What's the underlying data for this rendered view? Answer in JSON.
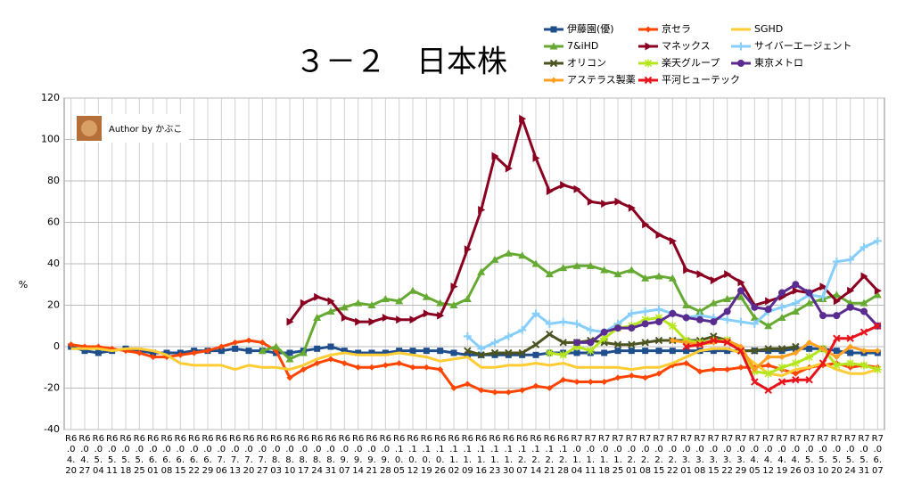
{
  "chart_data": {
    "type": "line",
    "title": "３－２　日本株",
    "y_label": "%",
    "watermark": "Author by かぶこ",
    "categories": [
      "R6.04.20",
      "R6.04.27",
      "R6.05.04",
      "R6.05.11",
      "R6.05.18",
      "R6.05.25",
      "R6.06.01",
      "R6.06.08",
      "R6.06.15",
      "R6.06.22",
      "R6.06.29",
      "R6.07.06",
      "R6.07.13",
      "R6.07.20",
      "R6.07.27",
      "R6.08.03",
      "R6.08.10",
      "R6.08.17",
      "R6.08.24",
      "R6.08.31",
      "R6.09.07",
      "R6.09.14",
      "R6.09.21",
      "R6.09.28",
      "R6.10.05",
      "R6.10.12",
      "R6.10.19",
      "R6.10.26",
      "R6.11.02",
      "R6.11.09",
      "R6.11.16",
      "R6.11.23",
      "R6.11.30",
      "R6.12.07",
      "R6.12.14",
      "R6.12.21",
      "R6.12.28",
      "R7.01.04",
      "R7.01.11",
      "R7.01.18",
      "R7.01.25",
      "R7.02.01",
      "R7.02.08",
      "R7.02.15",
      "R7.02.22",
      "R7.03.01",
      "R7.03.08",
      "R7.03.15",
      "R7.03.22",
      "R7.03.29",
      "R7.04.05",
      "R7.04.12",
      "R7.04.19",
      "R7.04.26",
      "R7.05.03",
      "R7.05.10",
      "R7.05.20",
      "R7.05.24",
      "R7.05.31",
      "R7.06.07"
    ],
    "ylim": [
      -40,
      120
    ],
    "yticks": [
      -40,
      -20,
      0,
      20,
      40,
      60,
      80,
      100,
      120
    ],
    "grid": true,
    "series": [
      {
        "name": "伊藤園(優)",
        "color": "#1f4e8c",
        "marker": "square",
        "values": [
          0,
          -2,
          -3,
          -2,
          -1,
          -2,
          -3,
          -3,
          -3,
          -2,
          -2,
          -2,
          -1,
          -2,
          -2,
          -3,
          -3,
          -2,
          -1,
          0,
          -2,
          -3,
          -3,
          -3,
          -2,
          -2,
          -2,
          -2,
          -3,
          -4,
          -4,
          -4,
          -4,
          -4,
          -4,
          -3,
          -3,
          -3,
          -3,
          -3,
          -2,
          -2,
          -2,
          -2,
          -2,
          -2,
          -2,
          -2,
          -2,
          -2,
          -2,
          -2,
          -2,
          -1,
          -1,
          -1,
          -2,
          -3,
          -3,
          -3
        ]
      },
      {
        "name": "京セラ",
        "color": "#ff4500",
        "marker": "diamond",
        "values": [
          1,
          0,
          0,
          -1,
          -2,
          -3,
          -5,
          -5,
          -4,
          -3,
          -2,
          0,
          2,
          3,
          2,
          -2,
          -15,
          -11,
          -8,
          -6,
          -8,
          -10,
          -10,
          -9,
          -8,
          -10,
          -10,
          -11,
          -20,
          -18,
          -21,
          -22,
          -22,
          -21,
          -19,
          -20,
          -16,
          -17,
          -17,
          -17,
          -15,
          -14,
          -15,
          -13,
          -9,
          -8,
          -12,
          -11,
          -11,
          -10,
          -10,
          -9,
          -11,
          -13,
          -10,
          -9,
          -8,
          -10,
          -9,
          -10
        ]
      },
      {
        "name": "SGHD",
        "color": "#ffcc33",
        "marker": "none",
        "values": [
          -1,
          -1,
          -1,
          -2,
          -1,
          -1,
          -2,
          -4,
          -8,
          -9,
          -9,
          -9,
          -11,
          -9,
          -10,
          -10,
          -11,
          -9,
          -6,
          -4,
          -3,
          -4,
          -4,
          -4,
          -3,
          -4,
          -5,
          -7,
          -6,
          -5,
          -10,
          -10,
          -9,
          -9,
          -8,
          -9,
          -8,
          -10,
          -10,
          -10,
          -10,
          -11,
          -10,
          -10,
          -8,
          -5,
          -2,
          -1,
          -1,
          -3,
          -8,
          -13,
          -14,
          -11,
          -10,
          -8,
          -11,
          -13,
          -13,
          -11
        ]
      },
      {
        "name": "7&iHD",
        "color": "#66aa33",
        "marker": "triangle",
        "values": [
          null,
          null,
          null,
          null,
          null,
          null,
          null,
          null,
          null,
          null,
          null,
          null,
          null,
          null,
          -2,
          0,
          -6,
          -3,
          14,
          17,
          19,
          21,
          20,
          23,
          22,
          27,
          24,
          21,
          20,
          23,
          36,
          42,
          45,
          44,
          40,
          35,
          38,
          39,
          39,
          37,
          35,
          37,
          33,
          34,
          33,
          20,
          17,
          21,
          23,
          24,
          14,
          10,
          14,
          17,
          21,
          23,
          25,
          21,
          21,
          25
        ]
      },
      {
        "name": "マネックス",
        "color": "#8b0020",
        "marker": "triangle-right",
        "values": [
          null,
          null,
          null,
          null,
          null,
          null,
          null,
          null,
          null,
          null,
          null,
          null,
          null,
          null,
          null,
          null,
          12,
          21,
          24,
          22,
          14,
          12,
          12,
          14,
          13,
          13,
          16,
          15,
          29,
          47,
          66,
          92,
          86,
          110,
          91,
          75,
          78,
          76,
          70,
          69,
          70,
          67,
          59,
          54,
          51,
          37,
          35,
          32,
          35,
          31,
          20,
          22,
          24,
          27,
          26,
          29,
          22,
          27,
          34,
          27
        ]
      },
      {
        "name": "サイバーエージェント",
        "color": "#87cefa",
        "marker": "plus",
        "values": [
          null,
          null,
          null,
          null,
          null,
          null,
          null,
          null,
          null,
          null,
          null,
          null,
          null,
          null,
          null,
          null,
          null,
          null,
          null,
          null,
          null,
          null,
          null,
          null,
          null,
          null,
          null,
          null,
          null,
          5,
          -1,
          2,
          5,
          8,
          16,
          11,
          12,
          11,
          8,
          7,
          11,
          16,
          17,
          18,
          16,
          14,
          15,
          14,
          13,
          12,
          11,
          17,
          19,
          21,
          25,
          24,
          41,
          42,
          48,
          51
        ]
      },
      {
        "name": "オリコン",
        "color": "#4b5320",
        "marker": "x",
        "values": [
          null,
          null,
          null,
          null,
          null,
          null,
          null,
          null,
          null,
          null,
          null,
          null,
          null,
          null,
          null,
          null,
          null,
          null,
          null,
          null,
          null,
          null,
          null,
          null,
          null,
          null,
          null,
          null,
          null,
          -2,
          -4,
          -3,
          -3,
          -3,
          1,
          6,
          2,
          2,
          3,
          2,
          1,
          1,
          2,
          3,
          3,
          3,
          3,
          5,
          3,
          -2,
          -2,
          -1,
          -1,
          0,
          null,
          null,
          null,
          null,
          null,
          null
        ]
      },
      {
        "name": "楽天グループ",
        "color": "#b5e61d",
        "marker": "star",
        "values": [
          null,
          null,
          null,
          null,
          null,
          null,
          null,
          null,
          null,
          null,
          null,
          null,
          null,
          null,
          null,
          null,
          null,
          null,
          null,
          null,
          null,
          null,
          null,
          null,
          null,
          null,
          null,
          null,
          null,
          null,
          null,
          null,
          null,
          null,
          null,
          -3,
          -4,
          0,
          -2,
          4,
          9,
          10,
          13,
          14,
          10,
          3,
          2,
          3,
          3,
          -2,
          -12,
          -13,
          -10,
          -8,
          -5,
          -1,
          -9,
          -8,
          -9,
          -11
        ]
      },
      {
        "name": "東京メトロ",
        "color": "#5b2c8f",
        "marker": "circle",
        "values": [
          null,
          null,
          null,
          null,
          null,
          null,
          null,
          null,
          null,
          null,
          null,
          null,
          null,
          null,
          null,
          null,
          null,
          null,
          null,
          null,
          null,
          null,
          null,
          null,
          null,
          null,
          null,
          null,
          null,
          null,
          null,
          null,
          null,
          null,
          null,
          null,
          null,
          2,
          2,
          7,
          9,
          9,
          11,
          12,
          16,
          14,
          13,
          12,
          17,
          27,
          19,
          18,
          26,
          30,
          26,
          15,
          15,
          19,
          17,
          10
        ]
      },
      {
        "name": "アステラス製薬",
        "color": "#ffa020",
        "marker": "diamond",
        "values": [
          null,
          null,
          null,
          null,
          null,
          null,
          null,
          null,
          null,
          null,
          null,
          null,
          null,
          null,
          null,
          null,
          null,
          null,
          null,
          null,
          null,
          null,
          null,
          null,
          null,
          null,
          null,
          null,
          null,
          null,
          null,
          null,
          null,
          null,
          null,
          null,
          null,
          null,
          null,
          null,
          null,
          null,
          null,
          null,
          3,
          2,
          1,
          2,
          3,
          0,
          -11,
          -5,
          -5,
          -3,
          2,
          -1,
          -5,
          0,
          -2,
          -2
        ]
      },
      {
        "name": "平河ヒューテック",
        "color": "#e8141c",
        "marker": "x",
        "values": [
          null,
          null,
          null,
          null,
          null,
          null,
          null,
          null,
          null,
          null,
          null,
          null,
          null,
          null,
          null,
          null,
          null,
          null,
          null,
          null,
          null,
          null,
          null,
          null,
          null,
          null,
          null,
          null,
          null,
          null,
          null,
          null,
          null,
          null,
          null,
          null,
          null,
          null,
          null,
          null,
          null,
          null,
          null,
          null,
          null,
          0,
          1,
          3,
          2,
          -2,
          -17,
          -21,
          -17,
          -16,
          -16,
          -8,
          4,
          4,
          7,
          10
        ]
      }
    ]
  }
}
